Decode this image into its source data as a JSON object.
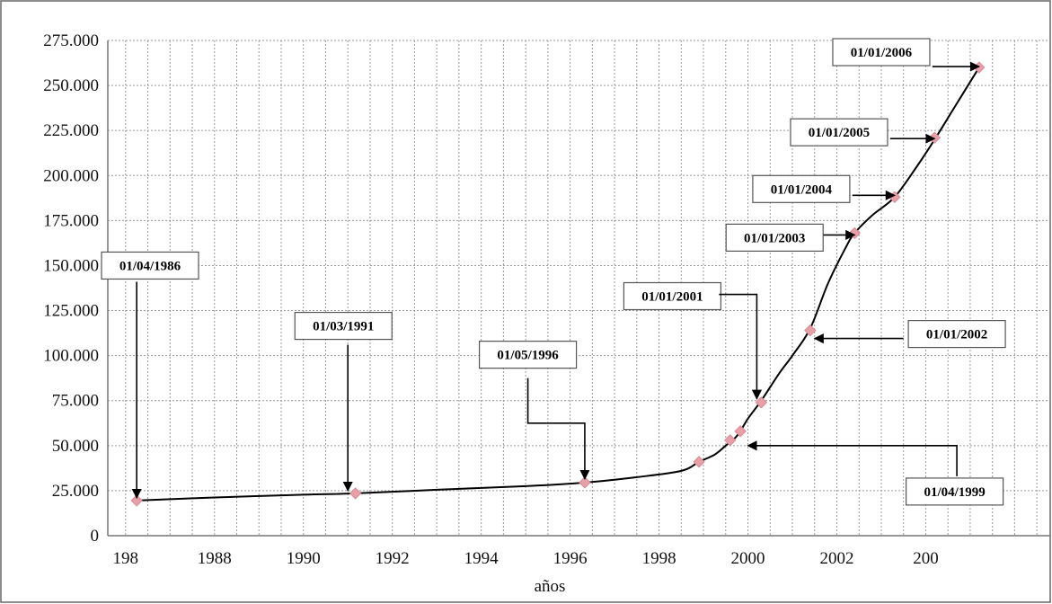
{
  "chart_data": {
    "type": "line",
    "xlabel": "años",
    "ylabel": "",
    "title": "",
    "grid": true,
    "legend": "none",
    "ylim": [
      0,
      275000
    ],
    "xlim": [
      1985.6,
      2006.8
    ],
    "y_ticks": [
      "0",
      "25.000",
      "50.000",
      "75.000",
      "100.000",
      "125.000",
      "150.000",
      "175.000",
      "200.000",
      "225.000",
      "250.000",
      "275.000"
    ],
    "y_tick_values": [
      0,
      25000,
      50000,
      75000,
      100000,
      125000,
      150000,
      175000,
      200000,
      225000,
      250000,
      275000
    ],
    "x_ticks": [
      "198",
      "1988",
      "1990",
      "1992",
      "1994",
      "1996",
      "1998",
      "2000",
      "2002",
      "200"
    ],
    "x_tick_values": [
      1986,
      1988,
      1990,
      1992,
      1994,
      1996,
      1998,
      2000,
      2002,
      2004
    ],
    "colors": {
      "line": "#000000",
      "marker": "#e8a0a8",
      "grid": "#9a9a9a",
      "frame": "#666666"
    },
    "series": [
      {
        "curve": [
          [
            1986.25,
            19500
          ],
          [
            1988.0,
            21200
          ],
          [
            1990.0,
            22800
          ],
          [
            1991.17,
            23500
          ],
          [
            1993.0,
            25500
          ],
          [
            1995.0,
            27500
          ],
          [
            1996.33,
            29500
          ],
          [
            1997.5,
            32500
          ],
          [
            1998.5,
            36000
          ],
          [
            1998.9,
            41000
          ],
          [
            1999.25,
            45000
          ],
          [
            1999.5,
            50000
          ],
          [
            1999.7,
            54000
          ],
          [
            1999.83,
            58000
          ],
          [
            2000.0,
            65000
          ],
          [
            2000.3,
            75000
          ],
          [
            2000.7,
            90000
          ],
          [
            2001.0,
            100000
          ],
          [
            2001.4,
            115000
          ],
          [
            2001.8,
            140000
          ],
          [
            2002.2,
            160000
          ],
          [
            2002.4,
            168000
          ],
          [
            2002.8,
            178000
          ],
          [
            2003.3,
            188000
          ],
          [
            2003.8,
            205000
          ],
          [
            2004.2,
            220000
          ],
          [
            2004.6,
            236000
          ],
          [
            2005.2,
            260000
          ]
        ],
        "markers": [
          [
            1986.25,
            19500
          ],
          [
            1991.17,
            23500
          ],
          [
            1996.33,
            29500
          ],
          [
            1998.9,
            41000
          ],
          [
            1999.6,
            53000
          ],
          [
            1999.83,
            58000
          ],
          [
            2000.3,
            74000
          ],
          [
            2001.4,
            114000
          ],
          [
            2002.4,
            168000
          ],
          [
            2003.3,
            188000
          ],
          [
            2004.2,
            221000
          ],
          [
            2005.2,
            260000
          ]
        ]
      }
    ],
    "annotations": [
      {
        "text": "01/04/1986",
        "box_at": [
          1986.55,
          150000
        ],
        "arrow": [
          [
            1986.25,
            141000
          ],
          [
            1986.25,
            21000
          ]
        ]
      },
      {
        "text": "01/03/1991",
        "box_at": [
          1990.9,
          116500
        ],
        "arrow": [
          [
            1991.0,
            106000
          ],
          [
            1991.0,
            25000
          ]
        ]
      },
      {
        "text": "01/05/1996",
        "box_at": [
          1995.05,
          100500
        ],
        "arrow": [
          [
            1995.05,
            87500
          ],
          [
            1995.05,
            62500
          ],
          [
            1996.33,
            62500
          ],
          [
            1996.33,
            31500
          ]
        ]
      },
      {
        "text": "01/01/2001",
        "box_at": [
          1998.3,
          133000
        ],
        "arrow": [
          [
            1999.35,
            134000
          ],
          [
            2000.2,
            134000
          ],
          [
            2000.2,
            76000
          ]
        ]
      },
      {
        "text": "01/01/2002",
        "box_at": [
          2004.7,
          112000
        ],
        "arrow": [
          [
            2003.5,
            109500
          ],
          [
            2001.5,
            109500
          ]
        ]
      },
      {
        "text": "01/04/1999",
        "box_at": [
          2004.65,
          24500
        ],
        "arrow": [
          [
            2004.7,
            33000
          ],
          [
            2004.7,
            50000
          ],
          [
            2000.0,
            50000
          ]
        ]
      },
      {
        "text": "01/01/2003",
        "box_at": [
          2000.6,
          165500
        ],
        "arrow": [
          [
            2001.7,
            167000
          ],
          [
            2002.4,
            167000
          ]
        ]
      },
      {
        "text": "01/01/2004",
        "box_at": [
          2001.2,
          192500
        ],
        "arrow": [
          [
            2002.35,
            189000
          ],
          [
            2003.3,
            189000
          ]
        ]
      },
      {
        "text": "01/01/2005",
        "box_at": [
          2002.05,
          224000
        ],
        "arrow": [
          [
            2003.2,
            220500
          ],
          [
            2004.2,
            220500
          ]
        ]
      },
      {
        "text": "01/01/2006",
        "box_at": [
          2003.0,
          268500
        ],
        "arrow": [
          [
            2004.15,
            260500
          ],
          [
            2005.2,
            260500
          ]
        ]
      }
    ]
  }
}
